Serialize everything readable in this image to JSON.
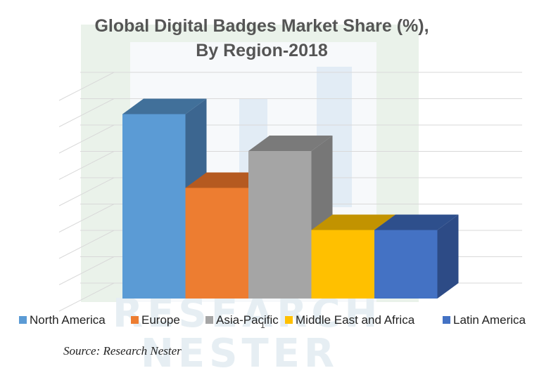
{
  "chart_data": {
    "type": "bar",
    "title_lines": [
      "Global Digital Badges Market Share (%),",
      "By Region-2018"
    ],
    "categories": [
      "North America",
      "Europe",
      "Asia-Pacific",
      "Middle East and Africa",
      "Latin America"
    ],
    "values": [
      35,
      21,
      28,
      13,
      13
    ],
    "ylim": [
      0,
      40
    ],
    "grid": true,
    "legend_position": "bottom",
    "axis_mark": "1",
    "source": "Source: Research Nester"
  },
  "watermark": {
    "line1": "RESEARCH",
    "line2": "NESTER"
  },
  "colors": {
    "series": [
      {
        "front": "#5b9bd5",
        "top": "#41709a",
        "side": "#3c6690"
      },
      {
        "front": "#ed7d31",
        "top": "#b55a20",
        "side": "#b4591f"
      },
      {
        "front": "#a5a5a5",
        "top": "#7a7a7a",
        "side": "#777777"
      },
      {
        "front": "#ffc000",
        "top": "#c29300",
        "side": "#be8f00"
      },
      {
        "front": "#4472c4",
        "top": "#2e4f8c",
        "side": "#2d4b86"
      }
    ],
    "gridline": "#d9d9d9",
    "title": "#555555"
  }
}
